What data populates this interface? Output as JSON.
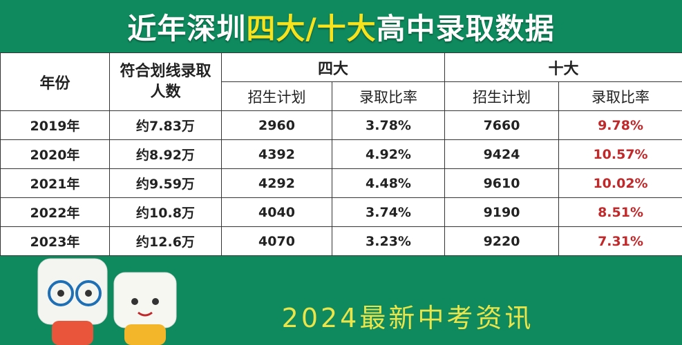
{
  "header": {
    "title": [
      "近年深圳",
      "四大/十大",
      "高中录取数据"
    ]
  },
  "table": {
    "header": [
      "年份",
      "符合划线录取人数",
      "四大",
      "十大"
    ],
    "subheader": [
      "招生计划",
      "录取比率",
      "招生计划",
      "录取比率"
    ],
    "rows": [
      [
        "2019年",
        "约7.83万",
        "2960",
        "3.78%",
        "7660",
        "9.78%"
      ],
      [
        "2020年",
        "约8.92万",
        "4392",
        "4.92%",
        "9424",
        "10.57%"
      ],
      [
        "2021年",
        "约9.59万",
        "4292",
        "4.48%",
        "9610",
        "10.02%"
      ],
      [
        "2022年",
        "约10.8万",
        "4040",
        "3.74%",
        "9190",
        "8.51%"
      ],
      [
        "2023年",
        "约12.6万",
        "4070",
        "3.23%",
        "9220",
        "7.31%"
      ]
    ]
  },
  "footer": {
    "text": "2024最新中考资讯"
  }
}
